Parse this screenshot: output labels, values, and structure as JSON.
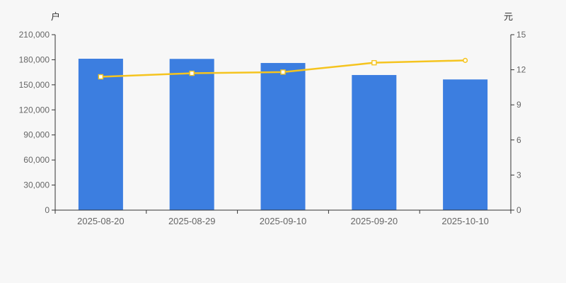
{
  "page": {
    "background": "#f7f7f7"
  },
  "chart_data": {
    "type": "bar",
    "title": "",
    "categories": [
      "2025-08-20",
      "2025-08-29",
      "2025-09-10",
      "2025-09-20",
      "2025-10-10"
    ],
    "series": [
      {
        "name": "户",
        "type": "bar",
        "axis": "left",
        "unit": "户",
        "color": "#3c7ee0",
        "values": [
          181200,
          181000,
          176100,
          161700,
          156400
        ]
      },
      {
        "name": "元",
        "type": "line",
        "axis": "right",
        "unit": "元",
        "color": "#f5c41f",
        "values": [
          11.4,
          11.7,
          11.8,
          12.6,
          12.8
        ]
      }
    ],
    "left_axis": {
      "unit_label": "户",
      "min": 0,
      "max": 210000,
      "tick_labels": [
        "0",
        "30,000",
        "60,000",
        "90,000",
        "120,000",
        "150,000",
        "180,000",
        "210,000"
      ]
    },
    "right_axis": {
      "unit_label": "元",
      "min": 0,
      "max": 15,
      "tick_labels": [
        "0",
        "3",
        "6",
        "9",
        "12",
        "15"
      ]
    },
    "layout_hints": {
      "grid": "off",
      "legend": "none",
      "bar_width_ratio": 0.49
    },
    "styles": {
      "background": "#f7f7f7",
      "axis_line_color": "#333333",
      "tick_text_color": "#666666",
      "unit_label_color": "#333333",
      "marker_fill": "#ffffff"
    }
  }
}
